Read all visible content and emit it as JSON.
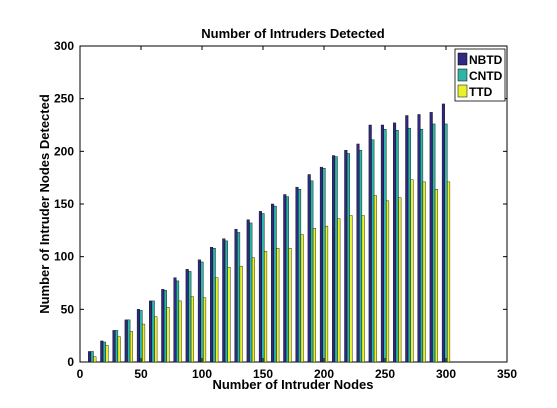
{
  "chart_data": {
    "type": "bar",
    "title": "Number of Intruders Detected",
    "xlabel": "Number of Intruder Nodes",
    "ylabel": "Number of Intruder Nodes Detected",
    "xlim": [
      0,
      350
    ],
    "ylim": [
      0,
      300
    ],
    "xticks": [
      0,
      50,
      100,
      150,
      200,
      250,
      300,
      350
    ],
    "yticks": [
      0,
      50,
      100,
      150,
      200,
      250,
      300
    ],
    "grid": false,
    "legend_position": "top-right",
    "x": [
      10,
      20,
      30,
      40,
      50,
      60,
      70,
      80,
      90,
      100,
      110,
      120,
      130,
      140,
      150,
      160,
      170,
      180,
      190,
      200,
      210,
      220,
      230,
      240,
      250,
      260,
      270,
      280,
      290,
      300
    ],
    "series": [
      {
        "name": "NBTD",
        "color": "#2e2a82",
        "values": [
          10,
          20,
          30,
          40,
          50,
          58,
          69,
          80,
          88,
          97,
          109,
          117,
          126,
          135,
          143,
          150,
          159,
          166,
          178,
          185,
          196,
          201,
          207,
          225,
          225,
          227,
          234,
          235,
          237,
          245
        ]
      },
      {
        "name": "CNTD",
        "color": "#2fb5a5",
        "values": [
          10,
          19,
          30,
          40,
          49,
          58,
          68,
          77,
          86,
          95,
          108,
          115,
          123,
          132,
          141,
          148,
          157,
          164,
          172,
          184,
          195,
          198,
          201,
          211,
          221,
          220,
          222,
          221,
          226,
          226
        ]
      },
      {
        "name": "TTD",
        "color": "#eaf02a",
        "values": [
          5,
          16,
          24,
          29,
          36,
          43,
          52,
          58,
          62,
          61,
          80,
          90,
          91,
          99,
          105,
          108,
          108,
          121,
          127,
          129,
          136,
          139,
          139,
          158,
          153,
          156,
          173,
          171,
          164,
          171
        ]
      }
    ]
  }
}
